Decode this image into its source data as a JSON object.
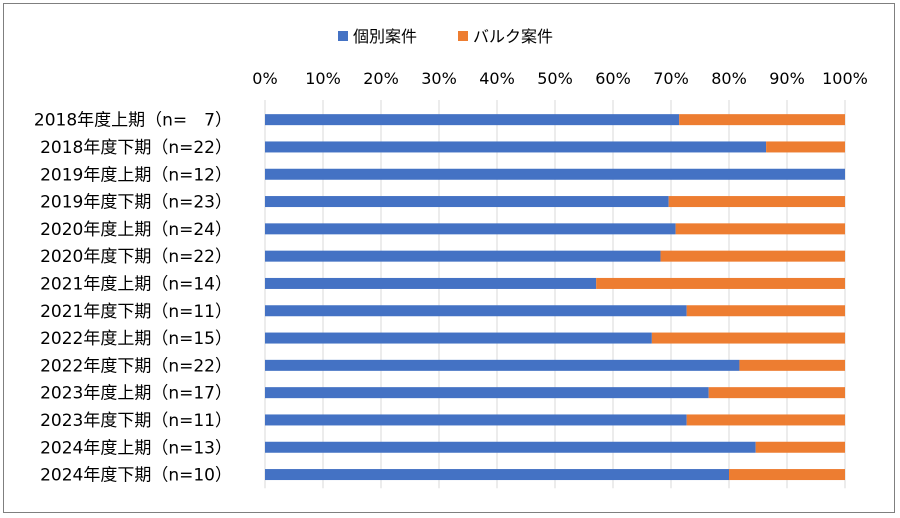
{
  "chart_data": {
    "type": "bar",
    "orientation": "horizontal",
    "stacked": "percent",
    "title": "",
    "xlabel": "",
    "ylabel": "",
    "xlim": [
      0,
      100
    ],
    "xticks": [
      "0%",
      "10%",
      "20%",
      "30%",
      "40%",
      "50%",
      "60%",
      "70%",
      "80%",
      "90%",
      "100%"
    ],
    "x_axis_position": "top",
    "legend_position": "top",
    "grid": true,
    "categories": [
      "2018年度上期（n=　7）",
      "2018年度下期（n=22）",
      "2019年度上期（n=12）",
      "2019年度下期（n=23）",
      "2020年度上期（n=24）",
      "2020年度下期（n=22）",
      "2021年度上期（n=14）",
      "2021年度下期（n=11）",
      "2022年度上期（n=15）",
      "2022年度下期（n=22）",
      "2023年度上期（n=17）",
      "2023年度下期（n=11）",
      "2024年度上期（n=13）",
      "2024年度下期（n=10）"
    ],
    "series": [
      {
        "name": "個別案件",
        "color": "#4472c4",
        "values": [
          71.4,
          86.4,
          100,
          69.6,
          70.8,
          68.2,
          57.1,
          72.7,
          66.7,
          81.8,
          76.5,
          72.7,
          84.6,
          80.0
        ]
      },
      {
        "name": "バルク案件",
        "color": "#ed7d31",
        "values": [
          28.6,
          13.6,
          0,
          30.4,
          29.2,
          31.8,
          42.9,
          27.3,
          33.3,
          18.2,
          23.5,
          27.3,
          15.4,
          20.0
        ]
      }
    ]
  }
}
